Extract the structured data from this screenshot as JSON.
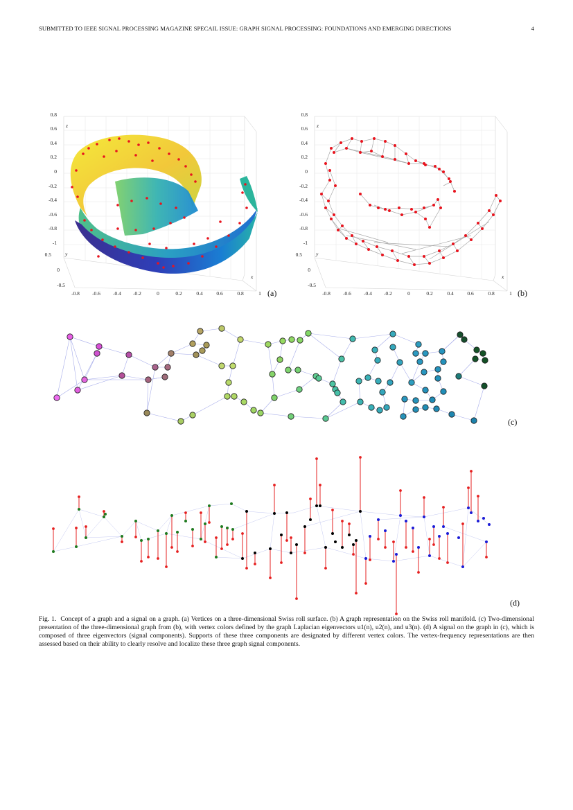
{
  "header": {
    "running_title": "SUBMITTED TO IEEE SIGNAL PROCESSING MAGAZINE SPECAIL ISSUE: GRAPH SIGNAL PROCESSING: FOUNDATIONS AND EMERGING DIRECTIONS",
    "page_number": "4"
  },
  "panels": {
    "a": {
      "label": "(a)",
      "z_ticks": [
        "0.8",
        "0.6",
        "0.4",
        "0.2",
        "0",
        "-0.2",
        "-0.4",
        "-0.6",
        "-0.8",
        "-1"
      ],
      "y_ticks": [
        "0.5",
        "0",
        "-0.5"
      ],
      "x_ticks": [
        "-0.8",
        "-0.6",
        "-0.4",
        "-0.2",
        "0",
        "0.2",
        "0.4",
        "0.6",
        "0.8",
        "1"
      ],
      "axis_x": "x",
      "axis_y": "y",
      "axis_z": "z"
    },
    "b": {
      "label": "(b)",
      "z_ticks": [
        "0.8",
        "0.6",
        "0.4",
        "0.2",
        "0",
        "-0.2",
        "-0.4",
        "-0.6",
        "-0.8",
        "-1"
      ],
      "y_ticks": [
        "0.5",
        "0",
        "-0.5"
      ],
      "x_ticks": [
        "-0.8",
        "-0.6",
        "-0.4",
        "-0.2",
        "0",
        "0.2",
        "0.4",
        "0.6",
        "0.8",
        "1"
      ],
      "axis_x": "x",
      "axis_y": "y",
      "axis_z": "z"
    },
    "c": {
      "label": "(c)"
    },
    "d": {
      "label": "(d)"
    }
  },
  "colors": {
    "vertex_red": "#e8141e",
    "edge_gray": "#a8a8a8",
    "edge_blue": "#9fa8e8",
    "stem_red": "#e62020",
    "comp1_green": "#1f7a1f",
    "comp2_black": "#000000",
    "comp3_blue": "#1b1bd6"
  },
  "caption": {
    "prefix": "Fig. 1.",
    "text": "Concept of a graph and a signal on a graph. (a) Vertices on a three-dimensional Swiss roll surface. (b) A graph representation on the Swiss roll manifold. (c) Two-dimensional presentation of the three-dimensional graph from (b), with vertex colors defined by the graph Laplacian eigenvectors u1(n), u2(n), and u3(n). (d) A signal on the graph in (c), which is composed of three eigenvectors (signal components). Supports of these three components are designated by different vertex colors. The vertex-frequency representations are then assessed based on their ability to clearly resolve and localize these three graph signal components."
  }
}
